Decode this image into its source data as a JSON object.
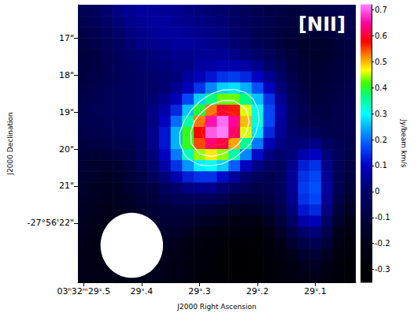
{
  "chart_data": {
    "type": "heatmap",
    "title": "[NII]",
    "xlabel": "J2000 Right Ascension",
    "ylabel": "J2000 Declination",
    "grid": false,
    "x": [
      29.5,
      29.48,
      29.46,
      29.44,
      29.42,
      29.4,
      29.38,
      29.36,
      29.34,
      29.32,
      29.3,
      29.28,
      29.26,
      29.24,
      29.22,
      29.2,
      29.18,
      29.16,
      29.14,
      29.12,
      29.1,
      29.08,
      29.06,
      29.04
    ],
    "y": [
      16.25,
      16.55,
      16.85,
      17.15,
      17.45,
      17.75,
      18.05,
      18.35,
      18.65,
      18.95,
      19.25,
      19.55,
      19.85,
      20.15,
      20.45,
      20.75,
      21.05,
      21.35,
      21.65,
      21.95,
      22.25,
      22.55,
      22.85,
      23.15,
      23.45
    ],
    "xlim": [
      29.51,
      29.03
    ],
    "ylim": [
      23.6,
      16.1
    ],
    "xticks": [
      {
        "value": 29.5,
        "label": "03ʰ32ᵐ29ˢ.5"
      },
      {
        "value": 29.4,
        "label": "29ˢ.4"
      },
      {
        "value": 29.3,
        "label": "29ˢ.3"
      },
      {
        "value": 29.2,
        "label": "29ˢ.2"
      },
      {
        "value": 29.1,
        "label": "29ˢ.1"
      }
    ],
    "yticks": [
      {
        "value": 17,
        "label": "17\""
      },
      {
        "value": 18,
        "label": "18\""
      },
      {
        "value": 19,
        "label": "19\""
      },
      {
        "value": 20,
        "label": "20\""
      },
      {
        "value": 21,
        "label": "21\""
      },
      {
        "value": 22,
        "label": "-27°56'22\""
      }
    ],
    "values": [
      [
        -0.05,
        -0.03,
        0.0,
        0.03,
        0.05,
        0.06,
        0.06,
        0.05,
        0.04,
        0.03,
        0.02,
        0.01,
        0.0,
        -0.02,
        -0.04,
        -0.06,
        -0.08,
        -0.09,
        -0.1,
        -0.1,
        -0.09,
        -0.08,
        -0.07,
        -0.06
      ],
      [
        -0.06,
        -0.04,
        -0.01,
        0.02,
        0.04,
        0.05,
        0.06,
        0.06,
        0.05,
        0.04,
        0.03,
        0.02,
        0.01,
        -0.01,
        -0.03,
        -0.05,
        -0.07,
        -0.09,
        -0.11,
        -0.12,
        -0.11,
        -0.1,
        -0.08,
        -0.07
      ],
      [
        -0.08,
        -0.06,
        -0.03,
        0.0,
        0.02,
        0.04,
        0.05,
        0.06,
        0.06,
        0.05,
        0.04,
        0.03,
        0.02,
        0.0,
        -0.02,
        -0.05,
        -0.08,
        -0.1,
        -0.12,
        -0.13,
        -0.13,
        -0.12,
        -0.1,
        -0.08
      ],
      [
        -0.1,
        -0.08,
        -0.05,
        -0.02,
        0.01,
        0.03,
        0.04,
        0.05,
        0.06,
        0.06,
        0.05,
        0.04,
        0.03,
        0.01,
        -0.01,
        -0.04,
        -0.07,
        -0.1,
        -0.13,
        -0.15,
        -0.15,
        -0.14,
        -0.12,
        -0.1
      ],
      [
        -0.11,
        -0.09,
        -0.06,
        -0.03,
        -0.01,
        0.01,
        0.02,
        0.03,
        0.04,
        0.04,
        0.05,
        0.05,
        0.05,
        0.04,
        0.02,
        0.0,
        -0.04,
        -0.08,
        -0.11,
        -0.14,
        -0.15,
        -0.14,
        -0.12,
        -0.1
      ],
      [
        -0.11,
        -0.09,
        -0.07,
        -0.04,
        -0.02,
        0.0,
        0.01,
        0.02,
        0.03,
        0.03,
        0.06,
        0.07,
        0.08,
        0.08,
        0.07,
        0.04,
        0.0,
        -0.04,
        -0.1,
        -0.13,
        -0.14,
        -0.13,
        -0.11,
        -0.09
      ],
      [
        -0.1,
        -0.08,
        -0.06,
        -0.04,
        -0.02,
        -0.01,
        0.0,
        0.01,
        0.02,
        0.06,
        0.09,
        0.12,
        0.15,
        0.16,
        0.14,
        0.1,
        0.05,
        -0.01,
        -0.07,
        -0.12,
        -0.13,
        -0.12,
        -0.1,
        -0.08
      ],
      [
        -0.09,
        -0.07,
        -0.05,
        -0.03,
        -0.02,
        -0.01,
        0.0,
        0.01,
        0.05,
        0.09,
        0.15,
        0.22,
        0.27,
        0.28,
        0.25,
        0.18,
        0.1,
        0.02,
        -0.05,
        -0.1,
        -0.12,
        -0.11,
        -0.09,
        -0.07
      ],
      [
        -0.08,
        -0.06,
        -0.04,
        -0.03,
        -0.02,
        -0.01,
        0.01,
        0.04,
        0.09,
        0.17,
        0.27,
        0.37,
        0.43,
        0.43,
        0.37,
        0.26,
        0.15,
        0.05,
        -0.03,
        -0.08,
        -0.11,
        -0.1,
        -0.08,
        -0.06
      ],
      [
        -0.07,
        -0.05,
        -0.04,
        -0.03,
        -0.02,
        -0.01,
        0.03,
        0.07,
        0.14,
        0.26,
        0.4,
        0.53,
        0.6,
        0.57,
        0.46,
        0.31,
        0.17,
        0.07,
        -0.02,
        -0.06,
        -0.09,
        -0.09,
        -0.07,
        -0.06
      ],
      [
        -0.07,
        -0.06,
        -0.05,
        -0.04,
        -0.03,
        -0.02,
        0.03,
        0.1,
        0.2,
        0.35,
        0.53,
        0.66,
        0.71,
        0.65,
        0.5,
        0.32,
        0.17,
        0.06,
        -0.01,
        -0.06,
        -0.07,
        -0.08,
        -0.07,
        -0.06
      ],
      [
        -0.08,
        -0.07,
        -0.06,
        -0.05,
        -0.04,
        -0.01,
        0.04,
        0.12,
        0.25,
        0.41,
        0.58,
        0.7,
        0.72,
        0.63,
        0.46,
        0.28,
        0.14,
        0.05,
        0.0,
        -0.02,
        -0.03,
        -0.06,
        -0.07,
        -0.07
      ],
      [
        -0.1,
        -0.09,
        -0.08,
        -0.07,
        -0.06,
        -0.02,
        0.04,
        0.12,
        0.25,
        0.41,
        0.55,
        0.63,
        0.61,
        0.51,
        0.36,
        0.21,
        0.09,
        0.03,
        0.01,
        0.02,
        0.03,
        -0.02,
        -0.05,
        -0.07
      ],
      [
        -0.12,
        -0.13,
        -0.12,
        -0.1,
        -0.08,
        -0.03,
        0.02,
        0.1,
        0.21,
        0.34,
        0.44,
        0.48,
        0.44,
        0.35,
        0.22,
        0.11,
        0.03,
        0.0,
        0.02,
        0.08,
        0.1,
        0.02,
        -0.04,
        -0.08
      ],
      [
        -0.13,
        -0.15,
        -0.15,
        -0.13,
        -0.1,
        -0.05,
        0.0,
        0.07,
        0.15,
        0.23,
        0.29,
        0.3,
        0.27,
        0.19,
        0.1,
        0.03,
        -0.01,
        -0.03,
        0.04,
        0.13,
        0.15,
        0.04,
        -0.04,
        -0.09
      ],
      [
        -0.14,
        -0.16,
        -0.17,
        -0.15,
        -0.12,
        -0.09,
        -0.03,
        0.02,
        0.08,
        0.13,
        0.15,
        0.15,
        0.11,
        0.06,
        0.01,
        -0.03,
        -0.06,
        -0.03,
        0.05,
        0.15,
        0.17,
        0.05,
        -0.05,
        -0.1
      ],
      [
        -0.15,
        -0.17,
        -0.18,
        -0.17,
        -0.14,
        -0.11,
        -0.09,
        -0.03,
        0.0,
        0.03,
        0.04,
        0.04,
        0.01,
        -0.02,
        -0.05,
        -0.08,
        -0.07,
        -0.03,
        0.05,
        0.16,
        0.18,
        0.06,
        -0.06,
        -0.12
      ],
      [
        -0.16,
        -0.18,
        -0.19,
        -0.18,
        -0.16,
        -0.13,
        -0.11,
        -0.07,
        -0.05,
        -0.04,
        -0.04,
        -0.05,
        -0.07,
        -0.1,
        -0.11,
        -0.11,
        -0.09,
        -0.04,
        0.04,
        0.15,
        0.17,
        0.05,
        -0.08,
        -0.14
      ],
      [
        -0.17,
        -0.19,
        -0.2,
        -0.19,
        -0.17,
        -0.15,
        -0.13,
        -0.11,
        -0.1,
        -0.1,
        -0.11,
        -0.12,
        -0.14,
        -0.16,
        -0.17,
        -0.16,
        -0.13,
        -0.07,
        0.02,
        0.12,
        0.14,
        0.02,
        -0.11,
        -0.17
      ],
      [
        -0.18,
        -0.2,
        -0.21,
        -0.2,
        -0.18,
        -0.16,
        -0.14,
        -0.13,
        -0.13,
        -0.14,
        -0.16,
        -0.18,
        -0.2,
        -0.22,
        -0.23,
        -0.22,
        -0.18,
        -0.11,
        -0.02,
        0.07,
        0.09,
        -0.02,
        -0.15,
        -0.21
      ],
      [
        -0.19,
        -0.21,
        -0.22,
        -0.21,
        -0.19,
        -0.17,
        -0.15,
        -0.15,
        -0.16,
        -0.18,
        -0.21,
        -0.24,
        -0.26,
        -0.27,
        -0.28,
        -0.27,
        -0.23,
        -0.16,
        -0.08,
        0.0,
        0.02,
        -0.07,
        -0.19,
        -0.24
      ],
      [
        -0.2,
        -0.22,
        -0.23,
        -0.22,
        -0.2,
        -0.18,
        -0.17,
        -0.17,
        -0.19,
        -0.22,
        -0.25,
        -0.28,
        -0.3,
        -0.31,
        -0.31,
        -0.3,
        -0.27,
        -0.21,
        -0.14,
        -0.08,
        -0.06,
        -0.12,
        -0.22,
        -0.27
      ],
      [
        -0.21,
        -0.22,
        -0.23,
        -0.22,
        -0.21,
        -0.19,
        -0.18,
        -0.19,
        -0.21,
        -0.24,
        -0.27,
        -0.3,
        -0.32,
        -0.33,
        -0.33,
        -0.32,
        -0.29,
        -0.25,
        -0.19,
        -0.14,
        -0.12,
        -0.17,
        -0.25,
        -0.29
      ],
      [
        -0.21,
        -0.22,
        -0.22,
        -0.21,
        -0.2,
        -0.19,
        -0.19,
        -0.2,
        -0.22,
        -0.25,
        -0.28,
        -0.3,
        -0.32,
        -0.33,
        -0.33,
        -0.32,
        -0.3,
        -0.27,
        -0.23,
        -0.19,
        -0.17,
        -0.21,
        -0.27,
        -0.3
      ],
      [
        -0.2,
        -0.21,
        -0.21,
        -0.2,
        -0.19,
        -0.19,
        -0.19,
        -0.2,
        -0.22,
        -0.25,
        -0.28,
        -0.3,
        -0.31,
        -0.32,
        -0.32,
        -0.31,
        -0.3,
        -0.28,
        -0.25,
        -0.22,
        -0.2,
        -0.23,
        -0.28,
        -0.3
      ]
    ],
    "colorbar": {
      "label": "Jy/beam km/s",
      "range": [
        -0.35,
        0.72
      ],
      "ticks": [
        -0.3,
        -0.2,
        -0.1,
        0,
        0.1,
        0.2,
        0.3,
        0.4,
        0.5,
        0.6,
        0.7
      ]
    },
    "contours": {
      "levels": [
        0.3,
        0.45,
        0.6
      ],
      "colors": [
        "#b8ffff",
        "#ffffff",
        "#ff2a2a"
      ]
    },
    "beam": {
      "ra": 29.417,
      "dec": 22.6,
      "ra_width": 0.108,
      "dec_height": 1.76
    }
  }
}
